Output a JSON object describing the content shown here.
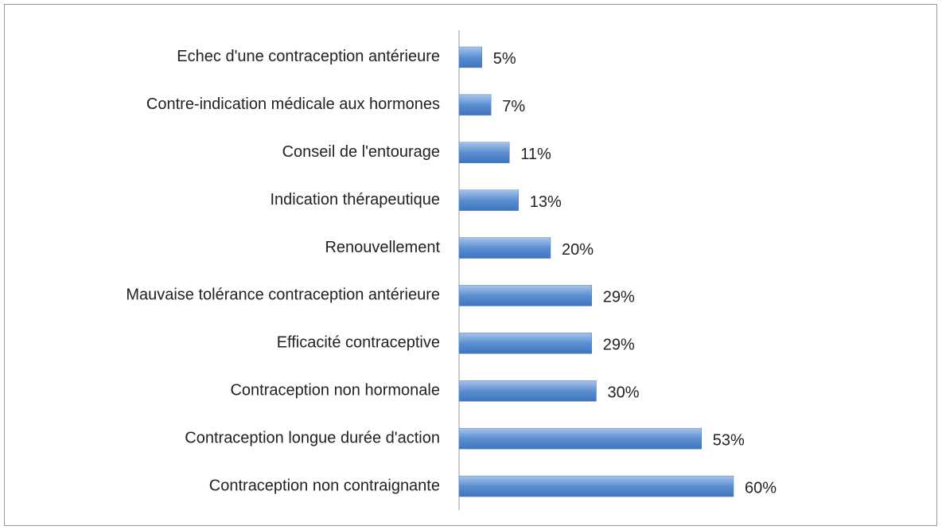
{
  "chart_data": {
    "type": "hbar",
    "categories": [
      "Echec d'une contraception antérieure",
      "Contre-indication médicale aux hormones",
      "Conseil de l'entourage",
      "Indication thérapeutique",
      "Renouvellement ",
      "Mauvaise tolérance contraception antérieure",
      "Efficacité contraceptive",
      "Contraception non hormonale",
      "Contraception longue durée d'action",
      "Contraception non contraignante"
    ],
    "values": [
      5,
      7,
      11,
      13,
      20,
      29,
      29,
      30,
      53,
      60
    ],
    "value_labels": [
      "5%",
      "7%",
      "11%",
      "13%",
      "20%",
      "29%",
      "29%",
      "30%",
      "53%",
      "60%"
    ],
    "color": "#4f81bd",
    "xlim": [
      0,
      100
    ]
  }
}
